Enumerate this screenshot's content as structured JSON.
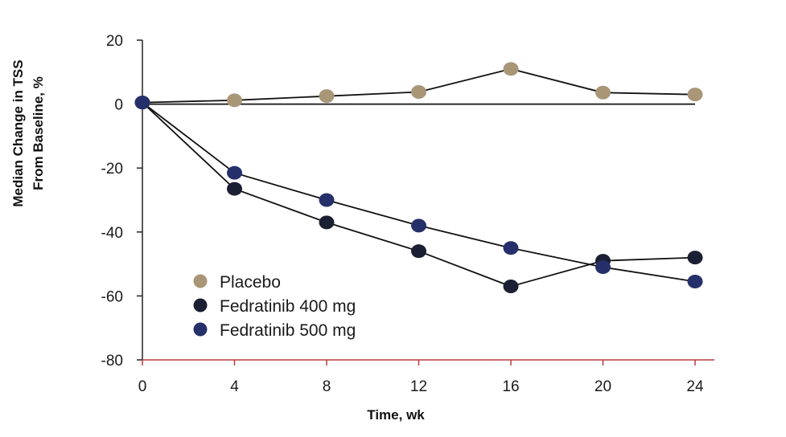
{
  "chart_data": {
    "type": "line",
    "title": "",
    "xlabel": "Time, wk",
    "ylabel_lines": [
      "Median Change in TSS",
      "From Baseline, %"
    ],
    "x": [
      0,
      4,
      8,
      12,
      16,
      20,
      24
    ],
    "xticks": [
      "0",
      "4",
      "8",
      "12",
      "16",
      "20",
      "24"
    ],
    "xlim": [
      0,
      24
    ],
    "yticks": [
      "20",
      "0",
      "-20",
      "-40",
      "-60",
      "-80"
    ],
    "ylim": [
      -80,
      20
    ],
    "grid": false,
    "reference_line_y": 0,
    "legend_position": "lower-left",
    "series": [
      {
        "name": "Placebo",
        "color": "#a89677",
        "values": [
          0.5,
          1.2,
          2.5,
          3.8,
          11.0,
          3.6,
          3.0
        ]
      },
      {
        "name": "Fedratinib 400 mg",
        "color": "#1b1f33",
        "values": [
          0.5,
          -26.5,
          -37.0,
          -46.0,
          -57.0,
          -49.0,
          -48.0
        ]
      },
      {
        "name": "Fedratinib 500 mg",
        "color": "#25306a",
        "values": [
          0.5,
          -21.5,
          -30.0,
          -38.0,
          -45.0,
          -51.0,
          -55.5
        ]
      }
    ],
    "colors": {
      "y_axis": "#222222",
      "x_axis": "#b83a3a",
      "lines": "#111111"
    }
  }
}
